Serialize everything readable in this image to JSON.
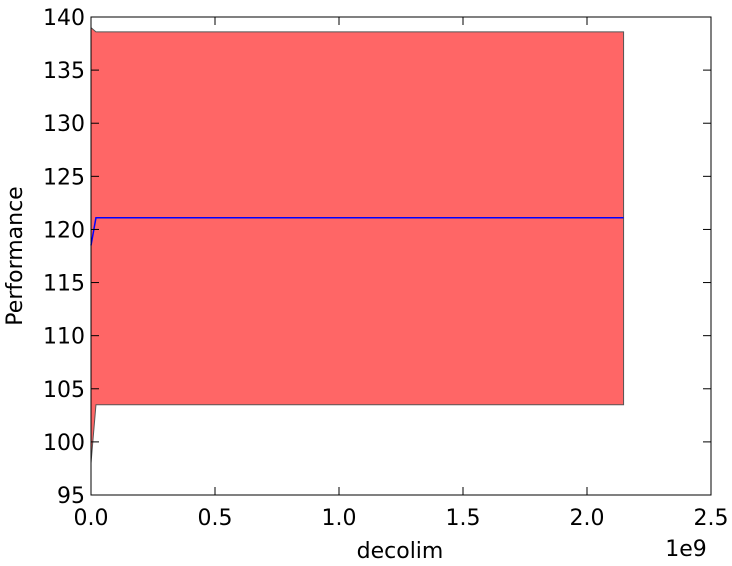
{
  "chart_data": {
    "type": "band-line",
    "x_label": "decolim",
    "y_label": "Performance",
    "x_offset_label": "1e9",
    "x": [
      0,
      20000000,
      2147483647
    ],
    "y": [
      118.5,
      121.1,
      121.1
    ],
    "y_upper": [
      139,
      138.6,
      138.6
    ],
    "y_lower": [
      98,
      103.5,
      103.5
    ],
    "line_color": "#0000ff",
    "band_color": "#ff6666",
    "band_edge_color": "#555555",
    "xlim": [
      0,
      2500000000
    ],
    "xticks": [
      {
        "value": 0,
        "label": "0.0"
      },
      {
        "value": 500000000,
        "label": "0.5"
      },
      {
        "value": 1000000000,
        "label": "1.0"
      },
      {
        "value": 1500000000,
        "label": "1.5"
      },
      {
        "value": 2000000000,
        "label": "2.0"
      },
      {
        "value": 2500000000,
        "label": "2.5"
      }
    ],
    "ylim": [
      95,
      140
    ],
    "yticks": [
      95,
      100,
      105,
      110,
      115,
      120,
      125,
      130,
      135,
      140
    ]
  }
}
